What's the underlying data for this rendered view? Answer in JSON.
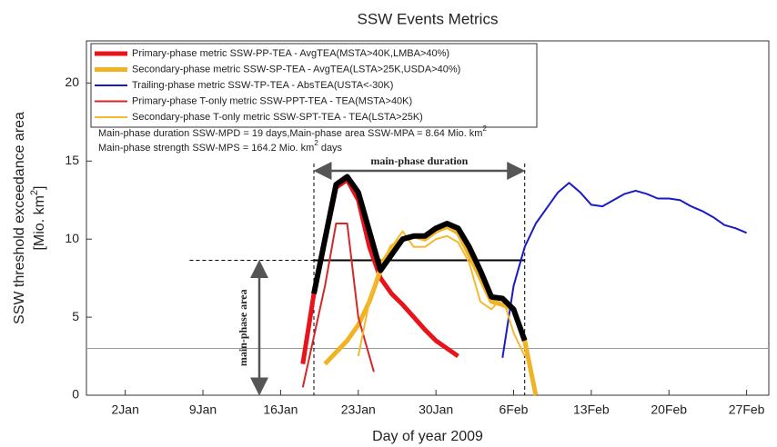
{
  "chart_data": {
    "type": "line",
    "title": "SSW Events Metrics",
    "xlabel": "Day of year 2009",
    "ylabel": "SSW threshold exceedance area",
    "ylabel_unit": [
      "[Mio. km",
      "2",
      "]"
    ],
    "xlim": [
      -1.5,
      60
    ],
    "ylim": [
      0,
      22.7
    ],
    "xticks": [
      {
        "value": 2,
        "label": "2Jan"
      },
      {
        "value": 9,
        "label": "9Jan"
      },
      {
        "value": 16,
        "label": "16Jan"
      },
      {
        "value": 23,
        "label": "23Jan"
      },
      {
        "value": 30,
        "label": "30Jan"
      },
      {
        "value": 37,
        "label": "6Feb"
      },
      {
        "value": 44,
        "label": "13Feb"
      },
      {
        "value": 51,
        "label": "20Feb"
      },
      {
        "value": 58,
        "label": "27Feb"
      }
    ],
    "yticks": [
      0,
      5,
      10,
      15,
      20
    ],
    "series": [
      {
        "color": "#000000",
        "linewidth": 6,
        "x": [
          19,
          21,
          22,
          23,
          24,
          25,
          26,
          27,
          28,
          29,
          30,
          31,
          32,
          33,
          34,
          35,
          36,
          37,
          38
        ],
        "values": [
          6.5,
          13.5,
          14,
          13,
          10.5,
          8,
          9,
          10,
          10.2,
          10.2,
          10.7,
          11,
          10.7,
          9.5,
          8,
          6.3,
          6.2,
          5.5,
          3.5
        ]
      },
      {
        "name": "Primary-phase metric SSW-PP-TEA - AvgTEA(MSTA>40K,LMBA>40%)",
        "color": "#e8141b",
        "linewidth": 5,
        "x": [
          18,
          19,
          21,
          22,
          23,
          24,
          25,
          26,
          27,
          28,
          29,
          30,
          31,
          32
        ],
        "values": [
          2,
          6.5,
          13.3,
          13.8,
          12.5,
          9.5,
          7.5,
          6.5,
          5.8,
          5,
          4.2,
          3.5,
          3,
          2.5
        ]
      },
      {
        "name": "Secondary-phase metric SSW-SP-TEA - AvgTEA(LSTA>25K,USDA>40%)",
        "color": "#f0b323",
        "linewidth": 5,
        "x": [
          20,
          22,
          23,
          24,
          25,
          26,
          27,
          28,
          29,
          30,
          31,
          32,
          33,
          34,
          35,
          36,
          37,
          38,
          39
        ],
        "values": [
          2,
          3.5,
          4.5,
          6,
          8,
          9.5,
          10,
          10.2,
          10,
          10.5,
          10.8,
          10.4,
          9,
          7.5,
          6,
          5.8,
          5.5,
          3.5,
          0
        ]
      },
      {
        "name": "Trailing-phase metric SSW-TP-TEA - AbsTEA(USTA<-30K)",
        "color": "#1a1ac8",
        "linewidth": 2,
        "x": [
          36,
          37,
          38,
          39,
          40,
          41,
          42,
          43,
          44,
          45,
          46,
          47,
          48,
          49,
          50,
          51,
          52,
          53,
          54,
          55,
          56,
          57,
          58
        ],
        "values": [
          2.4,
          7,
          9.5,
          11,
          12,
          13,
          13.6,
          13,
          12.2,
          12.1,
          12.5,
          12.9,
          13.1,
          12.9,
          12.6,
          12.6,
          12.5,
          12.1,
          11.8,
          11.4,
          10.9,
          10.7,
          10.4
        ]
      },
      {
        "name": "Primary-phase T-only metric SSW-PPT-TEA - TEA(MSTA>40K)",
        "color": "#d62728",
        "linewidth": 2,
        "x": [
          18,
          20,
          21,
          22,
          23,
          24.4
        ],
        "values": [
          0.5,
          7,
          11,
          11,
          5,
          1.5
        ]
      },
      {
        "name": "Secondary-phase T-only metric SSW-SPT-TEA - TEA(LSTA>25K)",
        "color": "#f5b82e",
        "linewidth": 2,
        "x": [
          23,
          24,
          25,
          26,
          27,
          28,
          29,
          30,
          31,
          32,
          33,
          34,
          35,
          36,
          37,
          38
        ],
        "values": [
          2.5,
          6,
          8.5,
          9.5,
          10.5,
          9.5,
          9.5,
          10,
          10.2,
          9.8,
          8.5,
          6,
          5.5,
          6.3,
          4,
          2.5
        ]
      }
    ],
    "annotations": [
      [
        "Main-phase duration SSW-MPD = 19 days,Main-phase area SSW-MPA = 8.64 Mio. km",
        "2"
      ],
      [
        "Main-phase strength SSW-MPS = 164.2 Mio. km",
        "2",
        " days"
      ]
    ],
    "main_phase": {
      "start": 19,
      "end": 38,
      "area": 8.64,
      "area_line_start": 7.8,
      "duration_label": "main-phase duration",
      "area_label": "main-phase area"
    },
    "threshold": 3
  }
}
